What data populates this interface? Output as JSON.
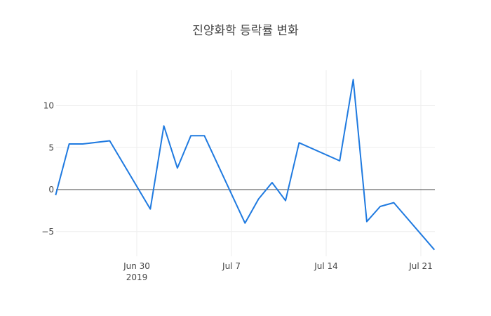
{
  "chart_data": {
    "type": "line",
    "title": "진양화학 등락률 변화",
    "xlabel": "",
    "ylabel": "",
    "x": [
      "2019-06-24",
      "2019-06-25",
      "2019-06-26",
      "2019-06-28",
      "2019-07-01",
      "2019-07-02",
      "2019-07-03",
      "2019-07-04",
      "2019-07-05",
      "2019-07-08",
      "2019-07-09",
      "2019-07-10",
      "2019-07-11",
      "2019-07-12",
      "2019-07-15",
      "2019-07-16",
      "2019-07-17",
      "2019-07-18",
      "2019-07-19",
      "2019-07-22"
    ],
    "series": [
      {
        "name": "등락률",
        "color": "#1f7ae0",
        "values": [
          -0.67,
          5.44,
          5.44,
          5.82,
          -2.32,
          7.59,
          2.57,
          6.42,
          6.42,
          -3.99,
          -1.12,
          0.84,
          -1.31,
          5.58,
          3.43,
          13.11,
          -3.82,
          -2.01,
          -1.56,
          -7.17
        ]
      }
    ],
    "x_ticks": [
      {
        "label": "Jun 30",
        "sub": "2019",
        "date": "2019-06-30"
      },
      {
        "label": "Jul 7",
        "date": "2019-07-07"
      },
      {
        "label": "Jul 14",
        "date": "2019-07-14"
      },
      {
        "label": "Jul 21",
        "date": "2019-07-21"
      }
    ],
    "y_ticks": [
      10,
      5,
      0,
      -5
    ],
    "y_tick_labels": [
      "10",
      "5",
      "0",
      "−5"
    ],
    "ylim": [
      -7.9,
      14.2
    ],
    "grid": true,
    "legend": false
  }
}
